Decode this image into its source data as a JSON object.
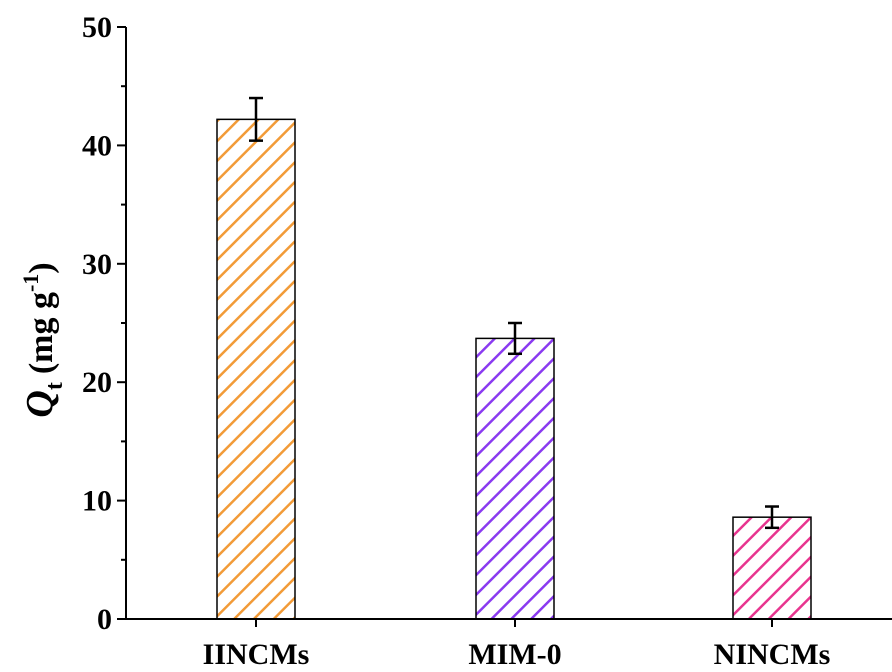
{
  "chart_data": {
    "type": "bar",
    "categories": [
      "IINCMs",
      "MIM-0",
      "NINCMs"
    ],
    "values": [
      42.2,
      23.7,
      8.6
    ],
    "errors": [
      1.8,
      1.3,
      0.9
    ],
    "colors": [
      "#f29b38",
      "#8a3bf0",
      "#e8348f"
    ],
    "ylim": [
      0,
      50
    ],
    "yticks": [
      "0",
      "10",
      "20",
      "30",
      "40",
      "50"
    ],
    "ylabel": {
      "symbol": "Q",
      "subscript": "t",
      "unit": "(mg g",
      "unit_superscript": "-1",
      "unit_close": ")"
    },
    "title": "",
    "xlabel": "",
    "grid": false
  }
}
